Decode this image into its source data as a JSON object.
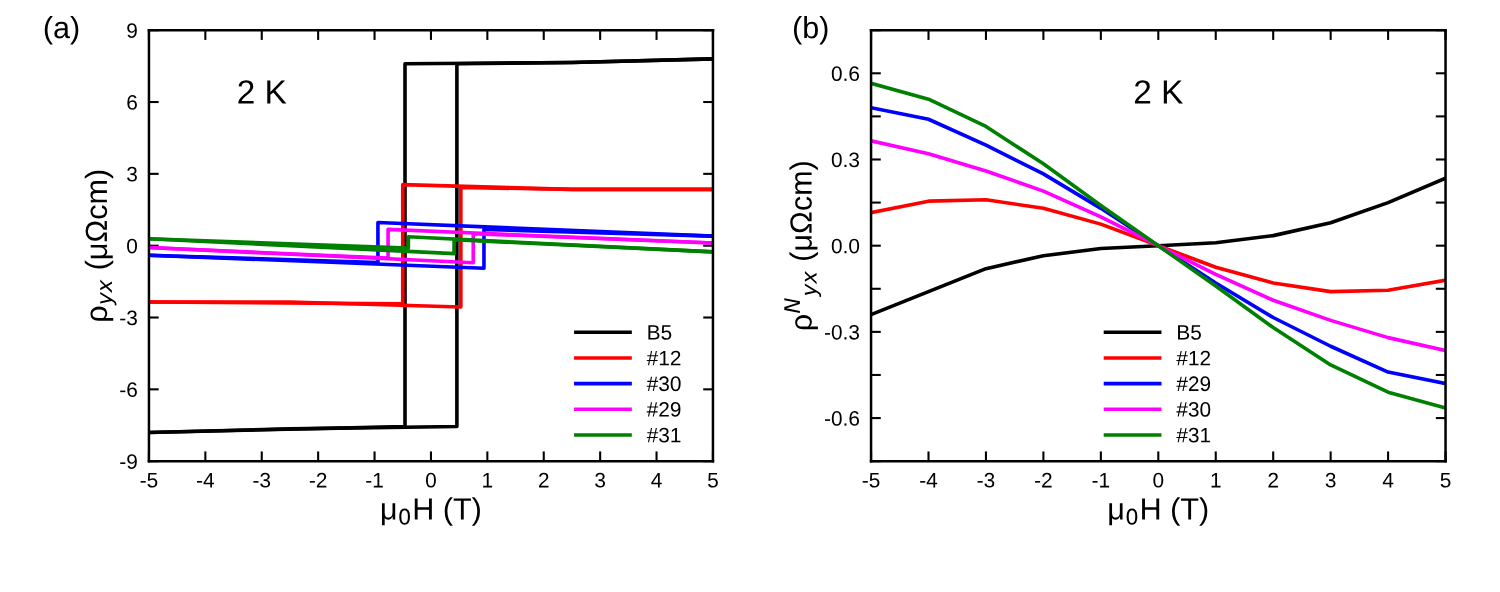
{
  "chart_data": [
    {
      "type": "line",
      "xlabel": "μ$_{0}$H (T)",
      "ylabel": "ρ$_{yx}$ (μΩcm)",
      "xlim": [
        -5,
        5
      ],
      "xticks": [
        -5,
        -4,
        -3,
        -2,
        -1,
        0,
        1,
        2,
        3,
        4,
        5
      ],
      "ylim": [
        -9,
        9
      ],
      "yticks": [
        -9,
        -6,
        -3,
        0,
        3,
        6,
        9
      ],
      "legend": "bottom right",
      "grid": false,
      "marker": "none",
      "line_style": "solid",
      "annotations": [
        {
          "text": "(a)"
        },
        {
          "text": "2 K"
        }
      ],
      "series": [
        {
          "name": "B5",
          "color": "#000000",
          "x": [
            -5,
            -2.5,
            0.46,
            0.46,
            2.5,
            5
          ],
          "values": [
            -7.8,
            -7.65,
            -7.55,
            7.6,
            7.65,
            7.8
          ]
        },
        {
          "color": "#000000",
          "x": [
            -5,
            -0.46,
            -0.46,
            2.5,
            5
          ],
          "values": [
            -7.8,
            -7.55,
            7.6,
            7.65,
            7.8
          ]
        },
        {
          "name": "#12",
          "color": "#ff0000",
          "x": [
            -5,
            -2.5,
            0.53,
            0.53,
            2.5,
            5
          ],
          "values": [
            -2.35,
            -2.35,
            -2.56,
            2.43,
            2.35,
            2.35
          ]
        },
        {
          "color": "#ff0000",
          "x": [
            -5,
            -0.5,
            -0.5,
            2.5,
            5
          ],
          "values": [
            -2.35,
            -2.43,
            2.55,
            2.35,
            2.35
          ]
        },
        {
          "name": "#30",
          "color": "#0000ff",
          "x": [
            -5,
            0.94,
            0.94,
            5
          ],
          "values": [
            -0.4,
            -0.94,
            0.68,
            0.4
          ]
        },
        {
          "color": "#0000ff",
          "x": [
            -5,
            -0.94,
            -0.94,
            5
          ],
          "values": [
            -0.4,
            -0.7,
            0.97,
            0.4
          ]
        },
        {
          "name": "#29",
          "color": "#ff00ff",
          "x": [
            -5,
            0.75,
            0.75,
            5
          ],
          "values": [
            -0.08,
            -0.71,
            0.5,
            0.11
          ]
        },
        {
          "color": "#ff00ff",
          "x": [
            -5,
            -0.76,
            -0.76,
            5
          ],
          "values": [
            -0.08,
            -0.52,
            0.68,
            0.11
          ]
        },
        {
          "name": "#31",
          "color": "#008000",
          "x": [
            -5,
            0.41,
            0.41,
            5
          ],
          "values": [
            0.29,
            -0.33,
            0.25,
            -0.26
          ]
        },
        {
          "color": "#008000",
          "x": [
            -5,
            -0.4,
            -0.4,
            5
          ],
          "values": [
            0.29,
            -0.1,
            0.37,
            -0.26
          ]
        }
      ]
    },
    {
      "type": "line",
      "xlabel": "μ$_{0}$H (T)",
      "ylabel": "ρ$^{N}$$_{yx}$ (μΩcm)",
      "xlim": [
        -5,
        5
      ],
      "xticks": [
        -5,
        -4,
        -3,
        -2,
        -1,
        0,
        1,
        2,
        3,
        4,
        5
      ],
      "ylim": [
        -0.75,
        0.75
      ],
      "yticks": [
        {
          "value": -0.75,
          "label": null
        },
        -0.6,
        {
          "value": -0.45,
          "label": null
        },
        -0.3,
        {
          "value": -0.15,
          "label": null
        },
        {
          "value": 0,
          "label": "0.0"
        },
        {
          "value": 0.15,
          "label": null
        },
        0.3,
        {
          "value": 0.45,
          "label": null
        },
        0.6,
        {
          "value": 0.75,
          "label": null
        }
      ],
      "legend": "bottom",
      "grid": false,
      "marker": "none",
      "line_style": "solid",
      "annotations": [
        {
          "text": "(b)"
        },
        {
          "text": "2 K"
        }
      ],
      "x": [
        -5,
        -4,
        -3,
        -2,
        -1,
        0,
        1,
        2,
        3,
        4,
        5
      ],
      "series": [
        {
          "name": "B5",
          "color": "#000000",
          "values": [
            -0.24,
            -0.16,
            -0.08,
            -0.035,
            -0.01,
            0,
            0.01,
            0.035,
            0.08,
            0.15,
            0.235
          ]
        },
        {
          "name": "#12",
          "color": "#ff0000",
          "values": [
            0.115,
            0.155,
            0.16,
            0.13,
            0.075,
            0,
            -0.075,
            -0.13,
            -0.16,
            -0.155,
            -0.12
          ]
        },
        {
          "name": "#29",
          "color": "#0000ff",
          "values": [
            0.48,
            0.44,
            0.35,
            0.25,
            0.13,
            0,
            -0.13,
            -0.25,
            -0.35,
            -0.44,
            -0.48
          ]
        },
        {
          "name": "#30",
          "color": "#ff00ff",
          "values": [
            0.365,
            0.32,
            0.26,
            0.19,
            0.1,
            0,
            -0.1,
            -0.19,
            -0.26,
            -0.32,
            -0.365
          ]
        },
        {
          "name": "#31",
          "color": "#008000",
          "values": [
            0.565,
            0.51,
            0.415,
            0.285,
            0.14,
            0,
            -0.14,
            -0.285,
            -0.415,
            -0.51,
            -0.565
          ]
        }
      ]
    }
  ]
}
